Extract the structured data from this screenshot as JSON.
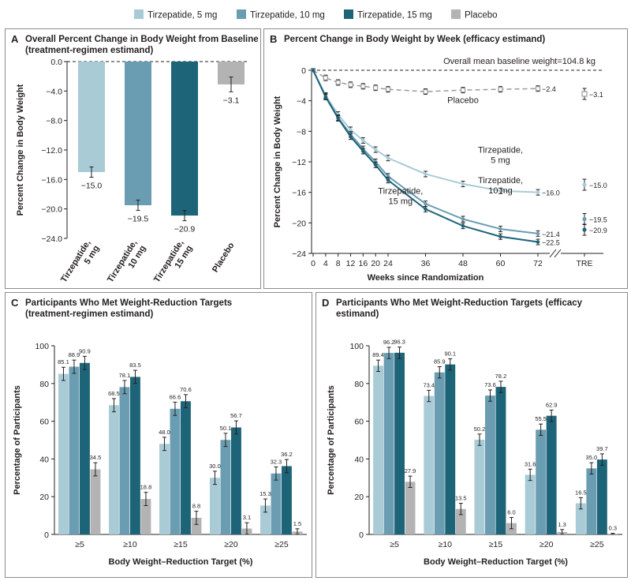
{
  "legend": [
    {
      "label": "Tirzepatide, 5 mg",
      "color": "#a9cbd6"
    },
    {
      "label": "Tirzepatide, 10 mg",
      "color": "#6a9db1"
    },
    {
      "label": "Tirzepatide, 15 mg",
      "color": "#1e6479"
    },
    {
      "label": "Placebo",
      "color": "#b3b3b3"
    }
  ],
  "panels": {
    "A": {
      "letter": "A",
      "title_line1": "Overall Percent Change in Body Weight from Baseline",
      "title_line2": "(treatment-regimen estimand)"
    },
    "B": {
      "letter": "B",
      "title_line1": "Percent Change in Body Weight by Week (efficacy estimand)"
    },
    "C": {
      "letter": "C",
      "title_line1": "Participants Who Met Weight-Reduction Targets",
      "title_line2": "(treatment-regimen estimand)"
    },
    "D": {
      "letter": "D",
      "title_line1": "Participants Who Met Weight-Reduction Targets (efficacy estimand)"
    }
  },
  "chart_data": [
    {
      "id": "A",
      "type": "bar",
      "ylabel": "Percent Change in Body Weight",
      "ylim": [
        -24,
        0
      ],
      "yticks": [
        "0.0",
        "-4.0",
        "-8.0",
        "-12.0",
        "-16.0",
        "-20.0",
        "-24.0"
      ],
      "categories": [
        "Tirzepatide, 5 mg",
        "Tirzepatide, 10 mg",
        "Tirzepatide, 15 mg",
        "Placebo"
      ],
      "values": [
        -15.0,
        -19.5,
        -20.9,
        -3.1
      ],
      "value_labels": [
        "−15.0",
        "−19.5",
        "−20.9",
        "−3.1"
      ],
      "error": [
        0.7,
        0.7,
        0.7,
        1.0
      ],
      "colors": [
        "#a9cbd6",
        "#6a9db1",
        "#1e6479",
        "#b3b3b3"
      ]
    },
    {
      "id": "B",
      "type": "line",
      "xlabel": "Weeks since Randomization",
      "ylabel": "Percent Change in Body Weight",
      "ylim": [
        -24,
        0
      ],
      "yticks": [
        "0",
        "-4",
        "-8",
        "-12",
        "-16",
        "-20",
        "-24"
      ],
      "x": [
        0,
        4,
        8,
        12,
        16,
        20,
        24,
        36,
        48,
        60,
        72
      ],
      "xticks": [
        "0",
        "4",
        "8",
        "12",
        "16",
        "20",
        "24",
        "36",
        "48",
        "60",
        "72"
      ],
      "tre_label": "TRE",
      "annotation": "Overall mean baseline weight=104.8 kg",
      "series": [
        {
          "name": "Placebo",
          "color": "#9a9a9a",
          "dashed": true,
          "values": [
            0,
            -1.0,
            -1.6,
            -1.9,
            -2.1,
            -2.3,
            -2.5,
            -2.8,
            -2.6,
            -2.5,
            -2.4
          ],
          "end_label": "−2.4",
          "tre": -3.1,
          "tre_label": "−3.1",
          "curve_label_1": "Placebo",
          "curve_label_2": ""
        },
        {
          "name": "Tirzepatide, 5 mg",
          "color": "#a9cbd6",
          "dashed": false,
          "values": [
            0,
            -3.3,
            -5.8,
            -7.8,
            -9.2,
            -10.4,
            -11.5,
            -13.6,
            -14.9,
            -15.8,
            -16.0
          ],
          "end_label": "−16.0",
          "tre": -15.0,
          "tre_label": "−15.0",
          "curve_label_1": "Tirzepatide,",
          "curve_label_2": "5 mg"
        },
        {
          "name": "Tirzepatide, 10 mg",
          "color": "#6a9db1",
          "dashed": false,
          "values": [
            0,
            -3.4,
            -6.2,
            -8.4,
            -10.3,
            -12.0,
            -13.9,
            -17.5,
            -19.5,
            -20.8,
            -21.4
          ],
          "end_label": "−21.4",
          "tre": -19.5,
          "tre_label": "−19.5",
          "curve_label_1": "Tirzepatide,",
          "curve_label_2": "10 mg"
        },
        {
          "name": "Tirzepatide, 15 mg",
          "color": "#1e6479",
          "dashed": false,
          "values": [
            0,
            -3.5,
            -6.3,
            -8.7,
            -10.6,
            -12.4,
            -14.4,
            -18.2,
            -20.4,
            -21.8,
            -22.5
          ],
          "end_label": "−22.5",
          "tre": -20.9,
          "tre_label": "−20.9",
          "curve_label_1": "Tirzepatide,",
          "curve_label_2": "15 mg"
        }
      ]
    },
    {
      "id": "C",
      "type": "bar",
      "xlabel": "Body Weight–Reduction Target (%)",
      "ylabel": "Percentage of Participants",
      "ylim": [
        0,
        100
      ],
      "yticks": [
        "0",
        "20",
        "40",
        "60",
        "80",
        "100"
      ],
      "categories": [
        "≥5",
        "≥10",
        "≥15",
        "≥20",
        "≥25"
      ],
      "series": [
        {
          "name": "Tirzepatide, 5 mg",
          "color": "#a9cbd6",
          "values": [
            85.1,
            68.5,
            48.0,
            30.0,
            15.3
          ],
          "labels": [
            "85.1",
            "68.5",
            "48.0",
            "30.0",
            "15.3"
          ]
        },
        {
          "name": "Tirzepatide, 10 mg",
          "color": "#6a9db1",
          "values": [
            88.9,
            78.1,
            66.6,
            50.1,
            32.3
          ],
          "labels": [
            "88.9",
            "78.1",
            "66.6",
            "50.1",
            "32.3"
          ]
        },
        {
          "name": "Tirzepatide, 15 mg",
          "color": "#1e6479",
          "values": [
            90.9,
            83.5,
            70.6,
            56.7,
            36.2
          ],
          "labels": [
            "90.9",
            "83.5",
            "70.6",
            "56.7",
            "36.2"
          ]
        },
        {
          "name": "Placebo",
          "color": "#b3b3b3",
          "values": [
            34.5,
            18.8,
            8.8,
            3.1,
            1.5
          ],
          "labels": [
            "34.5",
            "18.8",
            "8.8",
            "3.1",
            "1.5"
          ]
        }
      ],
      "error": 3.5
    },
    {
      "id": "D",
      "type": "bar",
      "xlabel": "Body Weight–Reduction Target (%)",
      "ylabel": "Percentage of Participants",
      "ylim": [
        0,
        100
      ],
      "yticks": [
        "0",
        "20",
        "40",
        "60",
        "80",
        "100"
      ],
      "categories": [
        "≥5",
        "≥10",
        "≥15",
        "≥20",
        "≥25"
      ],
      "series": [
        {
          "name": "Tirzepatide, 5 mg",
          "color": "#a9cbd6",
          "values": [
            89.4,
            73.4,
            50.2,
            31.6,
            16.5
          ],
          "labels": [
            "89.4",
            "73.4",
            "50.2",
            "31.6",
            "16.5"
          ]
        },
        {
          "name": "Tirzepatide, 10 mg",
          "color": "#6a9db1",
          "values": [
            96.2,
            85.9,
            73.6,
            55.5,
            35.0
          ],
          "labels": [
            "96.2",
            "85.9",
            "73.6",
            "55.5",
            "35.0"
          ]
        },
        {
          "name": "Tirzepatide, 15 mg",
          "color": "#1e6479",
          "values": [
            96.3,
            90.1,
            78.2,
            62.9,
            39.7
          ],
          "labels": [
            "96.3",
            "90.1",
            "78.2",
            "62.9",
            "39.7"
          ]
        },
        {
          "name": "Placebo",
          "color": "#b3b3b3",
          "values": [
            27.9,
            13.5,
            6.0,
            1.3,
            0.3
          ],
          "labels": [
            "27.9",
            "13.5",
            "6.0",
            "1.3",
            "0.3"
          ]
        }
      ],
      "error": 3.0
    }
  ]
}
